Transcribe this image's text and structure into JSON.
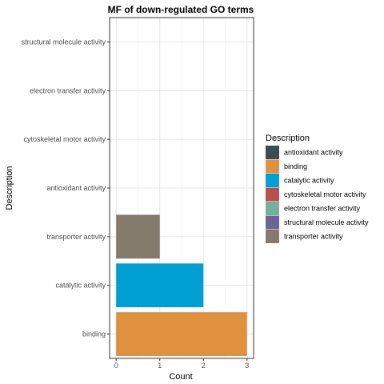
{
  "chart_data": {
    "type": "bar",
    "orientation": "horizontal",
    "title": "MF of down-regulated GO terms",
    "xlabel": "Count",
    "ylabel": "Description",
    "xlim": [
      -0.15,
      3.15
    ],
    "x_ticks": [
      0,
      1,
      2,
      3
    ],
    "grid": true,
    "categories": [
      "binding",
      "catalytic activity",
      "transporter activity",
      "antioxidant activity",
      "cytoskeletal motor activity",
      "electron transfer activity",
      "structural molecule activity"
    ],
    "values": [
      3,
      2,
      1,
      0,
      0,
      0,
      0
    ],
    "bar_colors": [
      "#E0913F",
      "#00A0D4",
      "#847B6D",
      "#3B4C55",
      "#B5504C",
      "#76AF9C",
      "#6C6496"
    ],
    "legend": {
      "title": "Description",
      "placement": "right",
      "entries": [
        {
          "label": "antioxidant activity",
          "color": "#3B4C55"
        },
        {
          "label": "binding",
          "color": "#E0913F"
        },
        {
          "label": "catalytic activity",
          "color": "#00A0D4"
        },
        {
          "label": "cytoskeletal motor activity",
          "color": "#B5504C"
        },
        {
          "label": "electron transfer activity",
          "color": "#76AF9C"
        },
        {
          "label": "structural molecule activity",
          "color": "#6C6496"
        },
        {
          "label": "transporter activity",
          "color": "#847B6D"
        }
      ]
    }
  }
}
